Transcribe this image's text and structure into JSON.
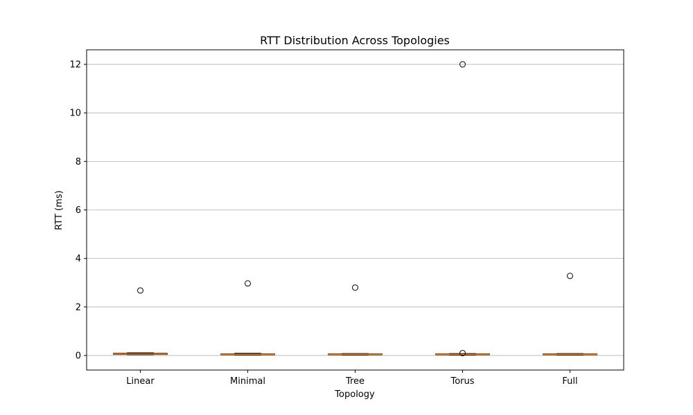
{
  "chart_data": {
    "type": "box",
    "title": "RTT Distribution Across Topologies",
    "xlabel": "Topology",
    "ylabel": "RTT (ms)",
    "ylim": [
      -0.6,
      12.6
    ],
    "yticks": [
      0,
      2,
      4,
      6,
      8,
      10,
      12
    ],
    "grid": "y",
    "categories": [
      "Linear",
      "Minimal",
      "Tree",
      "Torus",
      "Full"
    ],
    "boxes": [
      {
        "q1": 0.04,
        "median": 0.06,
        "q3": 0.09,
        "whisker_low": 0.03,
        "whisker_high": 0.11,
        "outliers": [
          2.68
        ]
      },
      {
        "q1": 0.03,
        "median": 0.05,
        "q3": 0.07,
        "whisker_low": 0.02,
        "whisker_high": 0.09,
        "outliers": [
          2.97
        ]
      },
      {
        "q1": 0.03,
        "median": 0.05,
        "q3": 0.07,
        "whisker_low": 0.02,
        "whisker_high": 0.08,
        "outliers": [
          2.8
        ]
      },
      {
        "q1": 0.03,
        "median": 0.05,
        "q3": 0.07,
        "whisker_low": 0.02,
        "whisker_high": 0.08,
        "outliers": [
          12.0,
          0.1
        ]
      },
      {
        "q1": 0.03,
        "median": 0.05,
        "q3": 0.07,
        "whisker_low": 0.02,
        "whisker_high": 0.08,
        "outliers": [
          3.28
        ]
      }
    ],
    "colors": {
      "median": "#ff7f0e",
      "box": "#000000",
      "grid": "#b0b0b0"
    }
  }
}
